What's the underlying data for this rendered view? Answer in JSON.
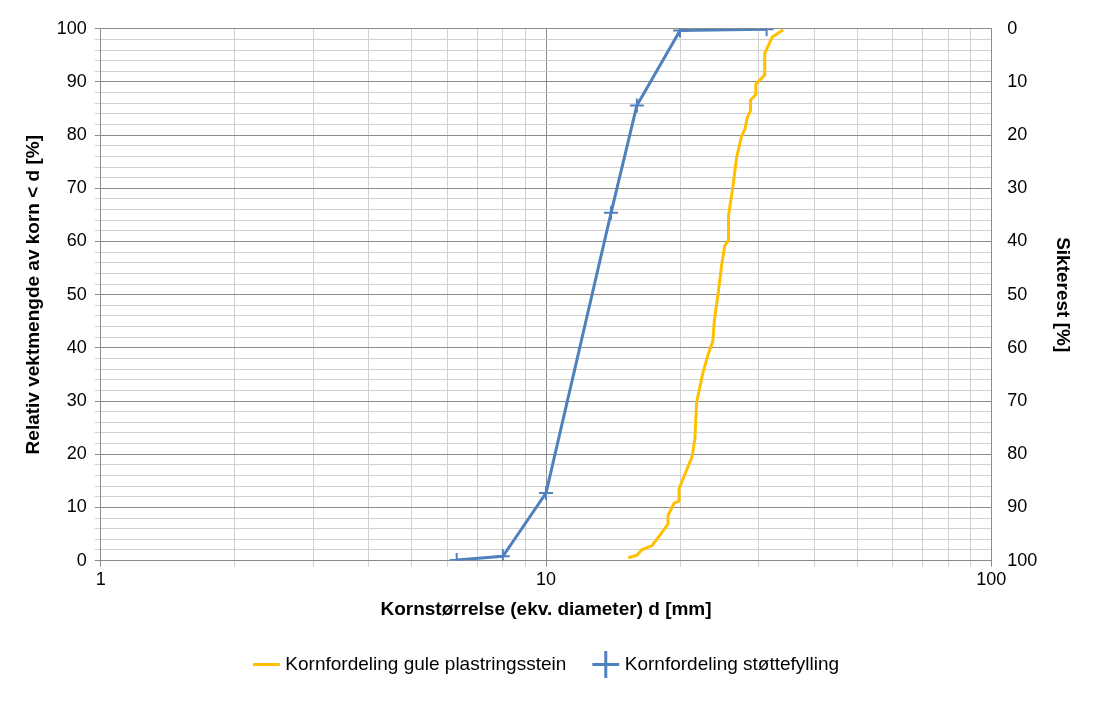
{
  "chart_data": {
    "type": "line",
    "xlabel": "Kornstørrelse (ekv. diameter) d [mm]",
    "ylabel": "Relativ vektmengde av korn < d [%]",
    "y2label": "Sikterest [%]",
    "log": "x",
    "grid": true,
    "legend": "bottom",
    "xlim": [
      1,
      100
    ],
    "xticks": [
      1,
      {
        "value": 2,
        "label": null
      },
      {
        "value": 3,
        "label": null
      },
      {
        "value": 4,
        "label": null
      },
      {
        "value": 5,
        "label": null
      },
      {
        "value": 6,
        "label": null
      },
      {
        "value": 7,
        "label": null
      },
      {
        "value": 8,
        "label": null
      },
      {
        "value": 9,
        "label": null
      },
      10,
      {
        "value": 20,
        "label": null
      },
      {
        "value": 30,
        "label": null
      },
      {
        "value": 40,
        "label": null
      },
      {
        "value": 50,
        "label": null
      },
      {
        "value": 60,
        "label": null
      },
      {
        "value": 70,
        "label": null
      },
      {
        "value": 80,
        "label": null
      },
      {
        "value": 90,
        "label": null
      },
      100
    ],
    "ylim": [
      0,
      100
    ],
    "yticks": [
      0,
      {
        "value": 2,
        "label": null
      },
      {
        "value": 4,
        "label": null
      },
      {
        "value": 6,
        "label": null
      },
      {
        "value": 8,
        "label": null
      },
      10,
      {
        "value": 12,
        "label": null
      },
      {
        "value": 14,
        "label": null
      },
      {
        "value": 16,
        "label": null
      },
      {
        "value": 18,
        "label": null
      },
      20,
      {
        "value": 22,
        "label": null
      },
      {
        "value": 24,
        "label": null
      },
      {
        "value": 26,
        "label": null
      },
      {
        "value": 28,
        "label": null
      },
      30,
      {
        "value": 32,
        "label": null
      },
      {
        "value": 34,
        "label": null
      },
      {
        "value": 36,
        "label": null
      },
      {
        "value": 38,
        "label": null
      },
      40,
      {
        "value": 42,
        "label": null
      },
      {
        "value": 44,
        "label": null
      },
      {
        "value": 46,
        "label": null
      },
      {
        "value": 48,
        "label": null
      },
      50,
      {
        "value": 52,
        "label": null
      },
      {
        "value": 54,
        "label": null
      },
      {
        "value": 56,
        "label": null
      },
      {
        "value": 58,
        "label": null
      },
      60,
      {
        "value": 62,
        "label": null
      },
      {
        "value": 64,
        "label": null
      },
      {
        "value": 66,
        "label": null
      },
      {
        "value": 68,
        "label": null
      },
      70,
      {
        "value": 72,
        "label": null
      },
      {
        "value": 74,
        "label": null
      },
      {
        "value": 76,
        "label": null
      },
      {
        "value": 78,
        "label": null
      },
      80,
      {
        "value": 82,
        "label": null
      },
      {
        "value": 84,
        "label": null
      },
      {
        "value": 86,
        "label": null
      },
      {
        "value": 88,
        "label": null
      },
      90,
      {
        "value": 92,
        "label": null
      },
      {
        "value": 94,
        "label": null
      },
      {
        "value": 96,
        "label": null
      },
      {
        "value": 98,
        "label": null
      },
      100
    ],
    "y2lim": [
      100,
      0
    ],
    "y2ticks": [
      0,
      10,
      20,
      30,
      40,
      50,
      60,
      70,
      80,
      90,
      100
    ],
    "series": [
      {
        "name": "Kornfordeling gule plastringsstein",
        "color": "#ffc000",
        "marker": "none",
        "x": [
          15.3,
          16.0,
          16.4,
          17.3,
          18.0,
          18.8,
          18.8,
          19.4,
          19.9,
          19.9,
          20.5,
          21.3,
          21.6,
          21.8,
          22.5,
          23.1,
          23.7,
          23.9,
          24.4,
          24.8,
          25.2,
          25.7,
          25.7,
          26.3,
          26.8,
          27.5,
          28.0,
          28.3,
          28.8,
          28.8,
          29.6,
          29.6,
          31.0,
          31.0,
          32.2,
          34.1
        ],
        "values": [
          0.5,
          1.0,
          2.0,
          2.8,
          4.7,
          6.9,
          8.5,
          10.8,
          11.2,
          13.5,
          16.2,
          19.6,
          23.0,
          29.8,
          35.2,
          38.6,
          41.3,
          45.3,
          50.7,
          55.5,
          59.2,
          60.2,
          64.9,
          70.4,
          75.8,
          79.8,
          81.2,
          83.2,
          84.6,
          86.6,
          87.6,
          89.6,
          91.3,
          95.4,
          98.4,
          99.8
        ]
      },
      {
        "name": "Kornfordeling støttefylling",
        "color": "#4f81bd",
        "marker": "cross",
        "x": [
          6.3,
          8.0,
          10.0,
          14.0,
          16.0,
          20.0,
          31.3
        ],
        "values": [
          0.1,
          0.8,
          12.7,
          65.4,
          85.6,
          99.7,
          99.9
        ]
      }
    ]
  }
}
